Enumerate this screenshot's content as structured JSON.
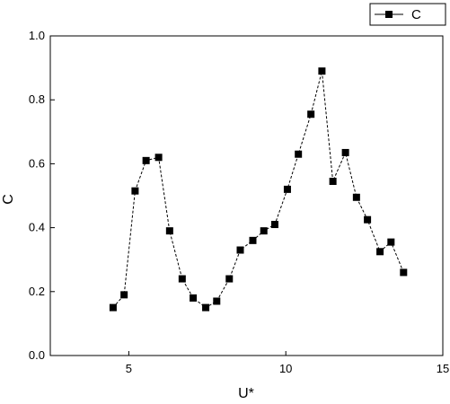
{
  "chart_data": {
    "type": "line",
    "xlabel": "U*",
    "ylabel": "C",
    "xlim": [
      2.5,
      15
    ],
    "ylim": [
      0,
      1.0
    ],
    "xticks": [
      "5",
      "10",
      "15"
    ],
    "xtick_values": [
      5,
      10,
      15
    ],
    "yticks": [
      "0.0",
      "0.2",
      "0.4",
      "0.6",
      "0.8",
      "1.0"
    ],
    "ytick_values": [
      0,
      0.2,
      0.4,
      0.6,
      0.8,
      1.0
    ],
    "grid": false,
    "legend_position": "top-right",
    "series": [
      {
        "name": "C",
        "marker": "square",
        "line_style": "dashed",
        "color": "#000000",
        "x": [
          4.5,
          4.85,
          5.2,
          5.55,
          5.95,
          6.3,
          6.7,
          7.05,
          7.45,
          7.8,
          8.2,
          8.55,
          8.95,
          9.3,
          9.65,
          10.05,
          10.4,
          10.8,
          11.15,
          11.5,
          11.9,
          12.25,
          12.6,
          13.0,
          13.35,
          13.75
        ],
        "y": [
          0.15,
          0.19,
          0.515,
          0.61,
          0.62,
          0.39,
          0.24,
          0.18,
          0.15,
          0.17,
          0.24,
          0.33,
          0.36,
          0.39,
          0.41,
          0.52,
          0.63,
          0.755,
          0.89,
          0.545,
          0.635,
          0.495,
          0.425,
          0.325,
          0.355,
          0.26
        ]
      }
    ]
  }
}
